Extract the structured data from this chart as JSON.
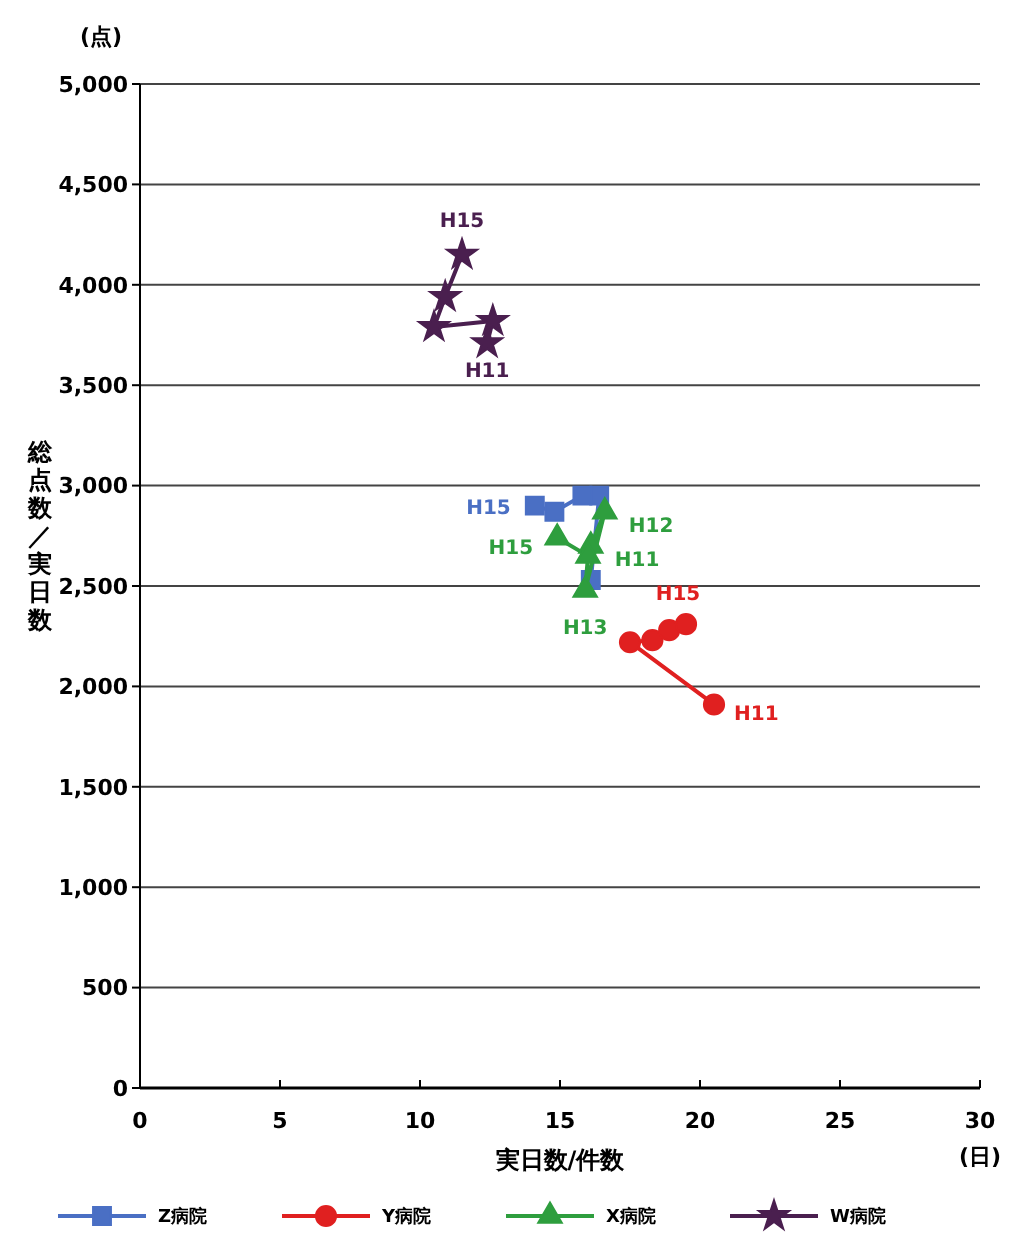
{
  "chart_data": {
    "type": "line",
    "xlabel": "実日数/件数",
    "ylabel": "総点数／実日数",
    "xlim": [
      0,
      30
    ],
    "xticks": [
      0,
      5,
      10,
      15,
      20,
      25,
      30
    ],
    "ylim": [
      0,
      5000
    ],
    "yticks": [
      {
        "value": 0,
        "label": "0"
      },
      {
        "value": 500,
        "label": "500"
      },
      {
        "value": 1000,
        "label": "1,000"
      },
      {
        "value": 1500,
        "label": "1,500"
      },
      {
        "value": 2000,
        "label": "2,000"
      },
      {
        "value": 2500,
        "label": "2,500"
      },
      {
        "value": 3000,
        "label": "3,000"
      },
      {
        "value": 3500,
        "label": "3,500"
      },
      {
        "value": 4000,
        "label": "4,000"
      },
      {
        "value": 4500,
        "label": "4,500"
      },
      {
        "value": 5000,
        "label": "5,000"
      }
    ],
    "grid": "y",
    "legend": "bottom",
    "line_style": "solid",
    "series": [
      {
        "name": "Z病院",
        "color": "#4a6fc4",
        "marker": "square",
        "x": [
          16.1,
          16.4,
          15.8,
          14.8,
          14.1
        ],
        "values": [
          2530,
          2950,
          2950,
          2870,
          2900
        ]
      },
      {
        "name": "Y病院",
        "color": "#e02020",
        "marker": "circle",
        "x": [
          20.5,
          17.5,
          18.3,
          18.9,
          19.5
        ],
        "values": [
          1910,
          2220,
          2230,
          2280,
          2310
        ]
      },
      {
        "name": "X病院",
        "color": "#2e9e3e",
        "marker": "triangle",
        "x": [
          16.1,
          16.6,
          15.9,
          16.0,
          14.9
        ],
        "values": [
          2700,
          2870,
          2480,
          2650,
          2740
        ]
      },
      {
        "name": "W病院",
        "color": "#4a1f4f",
        "marker": "star",
        "x": [
          12.4,
          12.6,
          10.5,
          10.9,
          11.5
        ],
        "values": [
          3710,
          3820,
          3790,
          3940,
          4150
        ]
      }
    ],
    "annotations": [
      "(点)",
      "(日)",
      {
        "text": "H15",
        "x": 11.5,
        "y": 4150
      },
      {
        "text": "H11",
        "x": 12.4,
        "y": 3710
      },
      {
        "text": "H15",
        "x": 14.1,
        "y": 2900
      },
      {
        "text": "H12",
        "x": 16.6,
        "y": 2870
      },
      {
        "text": "H15",
        "x": 14.9,
        "y": 2740
      },
      {
        "text": "H11",
        "x": 16.1,
        "y": 2700
      },
      {
        "text": "H13",
        "x": 15.9,
        "y": 2480
      },
      {
        "text": "H15",
        "x": 19.5,
        "y": 2310
      },
      {
        "text": "H11",
        "x": 20.5,
        "y": 1910
      }
    ]
  }
}
